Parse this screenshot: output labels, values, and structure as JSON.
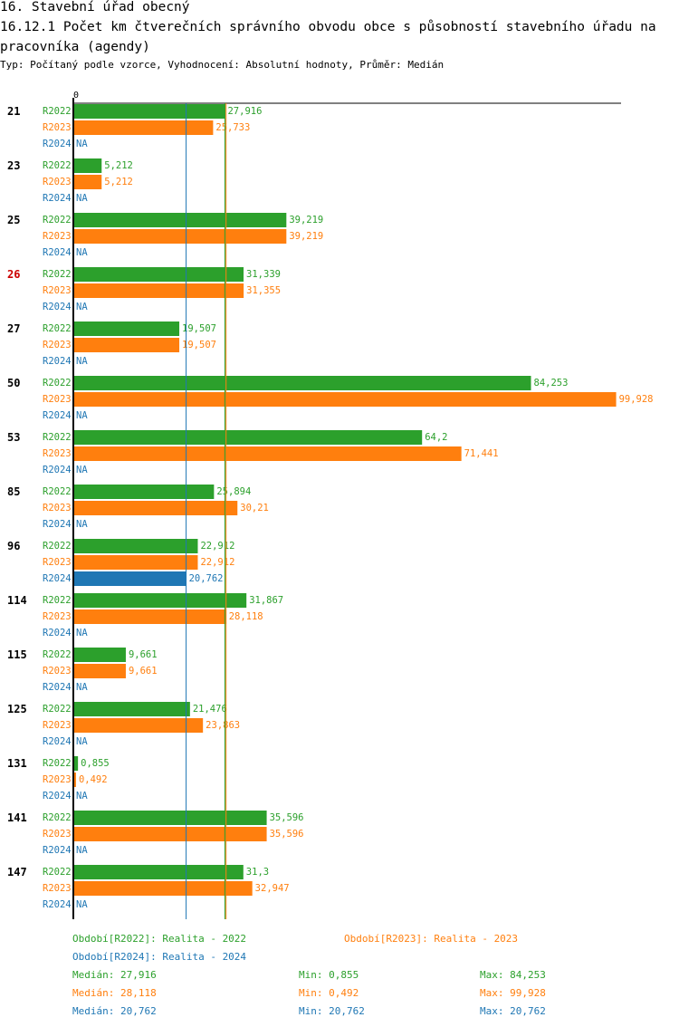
{
  "header": {
    "line1": "16. Stavební úřad obecný",
    "line2": "16.12.1 Počet km čtverečních správního obvodu obce s působností stavebního úřadu na pracovníka (agendy)",
    "subtitle": "Typ: Počítaný podle vzorce, Vyhodnocení: Absolutní hodnoty, Průměr: Medián"
  },
  "colors": {
    "R2022": "#2ca02c",
    "R2023": "#ff7f0e",
    "R2024": "#1f77b4",
    "highlight": "#cc0000",
    "axis": "#000000"
  },
  "chart_data": {
    "type": "bar",
    "orientation": "horizontal",
    "x_tick_label": "0",
    "xlim": [
      0,
      99.928
    ],
    "categories": [
      "21",
      "23",
      "25",
      "26",
      "27",
      "50",
      "53",
      "85",
      "96",
      "114",
      "115",
      "125",
      "131",
      "141",
      "147"
    ],
    "highlighted_category": "26",
    "na_label": "NA",
    "series": [
      {
        "name": "R2022",
        "values": [
          27.916,
          5.212,
          39.219,
          31.339,
          19.507,
          84.253,
          64.2,
          25.894,
          22.912,
          31.867,
          9.661,
          21.476,
          0.855,
          35.596,
          31.3
        ],
        "labels": [
          "27,916",
          "5,212",
          "39,219",
          "31,339",
          "19,507",
          "84,253",
          "64,2",
          "25,894",
          "22,912",
          "31,867",
          "9,661",
          "21,476",
          "0,855",
          "35,596",
          "31,3"
        ]
      },
      {
        "name": "R2023",
        "values": [
          25.733,
          5.212,
          39.219,
          31.355,
          19.507,
          99.928,
          71.441,
          30.21,
          22.912,
          28.118,
          9.661,
          23.863,
          0.492,
          35.596,
          32.947
        ],
        "labels": [
          "25,733",
          "5,212",
          "39,219",
          "31,355",
          "19,507",
          "99,928",
          "71,441",
          "30,21",
          "22,912",
          "28,118",
          "9,661",
          "23,863",
          "0,492",
          "35,596",
          "32,947"
        ]
      },
      {
        "name": "R2024",
        "values": [
          null,
          null,
          null,
          null,
          null,
          null,
          null,
          null,
          20.762,
          null,
          null,
          null,
          null,
          null,
          null
        ],
        "labels": [
          "NA",
          "NA",
          "NA",
          "NA",
          "NA",
          "NA",
          "NA",
          "NA",
          "20,762",
          "NA",
          "NA",
          "NA",
          "NA",
          "NA",
          "NA"
        ]
      }
    ],
    "median_lines": [
      {
        "series": "R2022",
        "value": 27.916
      },
      {
        "series": "R2023",
        "value": 28.118
      },
      {
        "series": "R2024",
        "value": 20.762
      }
    ]
  },
  "legend": {
    "r2022": "Období[R2022]: Realita - 2022",
    "r2023": "Období[R2023]: Realita - 2023",
    "r2024": "Období[R2024]: Realita - 2024"
  },
  "stats": {
    "r2022": {
      "median": "Medián: 27,916",
      "min": "Min: 0,855",
      "max": "Max: 84,253"
    },
    "r2023": {
      "median": "Medián: 28,118",
      "min": "Min: 0,492",
      "max": "Max: 99,928"
    },
    "r2024": {
      "median": "Medián: 20,762",
      "min": "Min: 20,762",
      "max": "Max: 20,762"
    }
  }
}
